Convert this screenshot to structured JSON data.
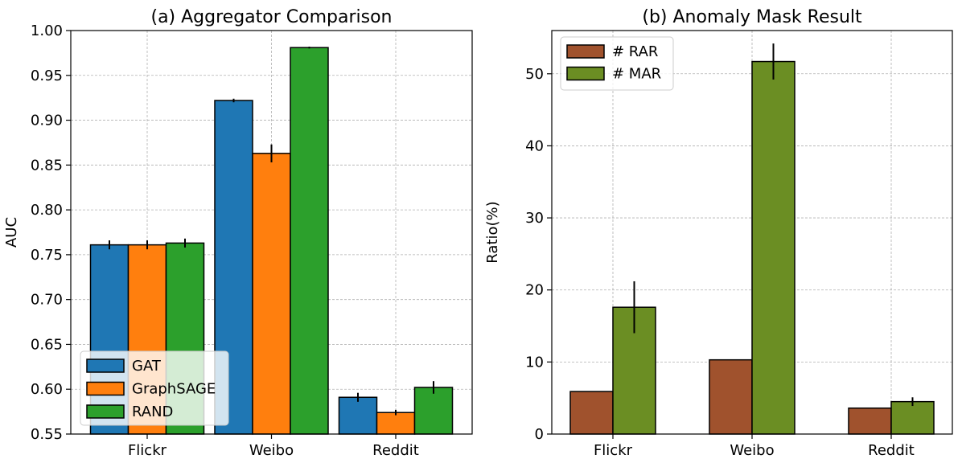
{
  "chart_data": [
    {
      "type": "bar",
      "title": "(a) Aggregator Comparison",
      "xlabel": "",
      "ylabel": "AUC",
      "categories": [
        "Flickr",
        "Weibo",
        "Reddit"
      ],
      "ylim": [
        0.55,
        1.0
      ],
      "yticks": [
        "0.55",
        "0.60",
        "0.65",
        "0.70",
        "0.75",
        "0.80",
        "0.85",
        "0.90",
        "0.95",
        "1.00"
      ],
      "grid": true,
      "legend_position": "lower-left",
      "series": [
        {
          "name": "GAT",
          "color": "#1f77b4",
          "values": [
            0.761,
            0.922,
            0.591
          ],
          "errors": [
            0.005,
            0.002,
            0.005
          ]
        },
        {
          "name": "GraphSAGE",
          "color": "#ff7f0e",
          "values": [
            0.761,
            0.863,
            0.574
          ],
          "errors": [
            0.005,
            0.01,
            0.003
          ]
        },
        {
          "name": "RAND",
          "color": "#2ca02c",
          "values": [
            0.763,
            0.981,
            0.602
          ],
          "errors": [
            0.005,
            0.001,
            0.007
          ]
        }
      ]
    },
    {
      "type": "bar",
      "title": "(b) Anomaly Mask Result",
      "xlabel": "",
      "ylabel": "Ratio(%)",
      "categories": [
        "Flickr",
        "Weibo",
        "Reddit"
      ],
      "ylim": [
        0,
        56
      ],
      "yticks": [
        "0",
        "10",
        "20",
        "30",
        "40",
        "50"
      ],
      "grid": true,
      "legend_position": "upper-left",
      "series": [
        {
          "name": "# RAR",
          "color": "#a0522d",
          "values": [
            5.9,
            10.3,
            3.6
          ],
          "errors": [
            null,
            null,
            null
          ]
        },
        {
          "name": "# MAR",
          "color": "#6b8e23",
          "values": [
            17.6,
            51.7,
            4.5
          ],
          "errors": [
            3.6,
            2.5,
            0.6
          ]
        }
      ]
    }
  ]
}
